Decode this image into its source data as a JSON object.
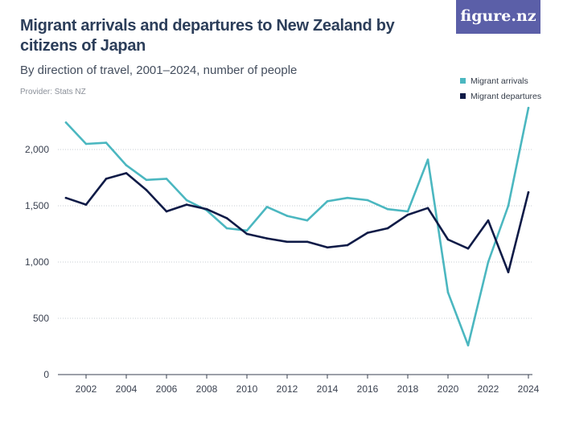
{
  "header": {
    "title": "Migrant arrivals and departures to New Zealand by citizens of Japan",
    "subtitle": "By direction of travel, 2001–2024, number of people",
    "provider": "Provider: Stats NZ",
    "logo": "figure.nz"
  },
  "legend": {
    "arrivals": "Migrant arrivals",
    "departures": "Migrant departures"
  },
  "colors": {
    "arrivals": "#4bb7c0",
    "departures": "#0f1b47",
    "grid": "#c7ccd3",
    "axis": "#3a4150",
    "logo_bg": "#5b5fa8"
  },
  "chart_data": {
    "type": "line",
    "x": [
      2001,
      2002,
      2003,
      2004,
      2005,
      2006,
      2007,
      2008,
      2009,
      2010,
      2011,
      2012,
      2013,
      2014,
      2015,
      2016,
      2017,
      2018,
      2019,
      2020,
      2021,
      2022,
      2023,
      2024
    ],
    "series": [
      {
        "name": "Migrant arrivals",
        "color": "#4bb7c0",
        "values": [
          2240,
          2050,
          2060,
          1860,
          1730,
          1740,
          1550,
          1460,
          1300,
          1280,
          1490,
          1410,
          1370,
          1540,
          1570,
          1550,
          1470,
          1450,
          1910,
          730,
          260,
          1000,
          1500,
          2370
        ]
      },
      {
        "name": "Migrant departures",
        "color": "#0f1b47",
        "values": [
          1570,
          1510,
          1740,
          1790,
          1640,
          1450,
          1510,
          1470,
          1390,
          1250,
          1210,
          1180,
          1180,
          1130,
          1150,
          1260,
          1300,
          1420,
          1480,
          1200,
          1120,
          1370,
          910,
          1620
        ]
      }
    ],
    "x_ticks": [
      "2002",
      "2004",
      "2006",
      "2008",
      "2010",
      "2012",
      "2014",
      "2016",
      "2018",
      "2020",
      "2022",
      "2024"
    ],
    "y_ticks": [
      {
        "value": 0,
        "label": "0"
      },
      {
        "value": 500,
        "label": "500"
      },
      {
        "value": 1000,
        "label": "1,000"
      },
      {
        "value": 1500,
        "label": "1,500"
      },
      {
        "value": 2000,
        "label": "2,000"
      }
    ],
    "ylim": [
      0,
      2400
    ],
    "xlim": [
      2000.6,
      2024.2
    ],
    "grid": true,
    "legend_position": "top-right"
  }
}
